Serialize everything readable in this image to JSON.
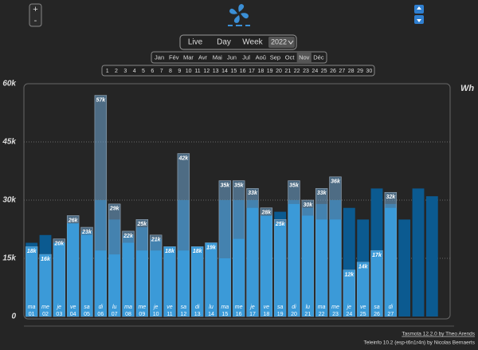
{
  "header": {
    "zoom_in": "+",
    "zoom_out": "-",
    "periods": [
      "Live",
      "Day",
      "Week"
    ],
    "year": "2022",
    "months": [
      "Jan",
      "Fév",
      "Mar",
      "Avr",
      "Mai",
      "Jun",
      "Jul",
      "Aoû",
      "Sep",
      "Oct",
      "Nov",
      "Déc"
    ],
    "selected_month": "Nov",
    "days": [
      "1",
      "2",
      "3",
      "4",
      "5",
      "6",
      "7",
      "8",
      "9",
      "10",
      "11",
      "12",
      "13",
      "14",
      "15",
      "16",
      "17",
      "18",
      "19",
      "20",
      "21",
      "22",
      "23",
      "24",
      "25",
      "26",
      "27",
      "28",
      "29",
      "30"
    ]
  },
  "chart_data": {
    "type": "bar",
    "unit": "Wh",
    "categories": [
      "01",
      "02",
      "03",
      "04",
      "05",
      "06",
      "07",
      "08",
      "09",
      "10",
      "11",
      "12",
      "13",
      "14",
      "15",
      "16",
      "17",
      "18",
      "19",
      "20",
      "21",
      "22",
      "23",
      "24",
      "25",
      "26",
      "27",
      null,
      null,
      null
    ],
    "weekdays": [
      "ma",
      "me",
      "je",
      "ve",
      "sa",
      "di",
      "lu",
      "ma",
      "me",
      "je",
      "ve",
      "sa",
      "di",
      "lu",
      "ma",
      "me",
      "je",
      "ve",
      "sa",
      "di",
      "lu",
      "ma",
      "me",
      "je",
      "ve",
      "sa",
      "di",
      null,
      null,
      null
    ],
    "ylim": [
      0,
      60000
    ],
    "yticks": [
      0,
      {
        "value": 15000,
        "label": "15k"
      },
      {
        "value": 30000,
        "label": "30k"
      },
      {
        "value": 45000,
        "label": "45k"
      },
      {
        "value": 60000,
        "label": "60k"
      }
    ],
    "grid": true,
    "series": [
      {
        "color": "#0b5a90",
        "values": [
          19000,
          21000,
          19000,
          24000,
          22000,
          30000,
          25000,
          21000,
          23000,
          20000,
          17000,
          30000,
          17000,
          18000,
          30000,
          30000,
          30000,
          26000,
          27000,
          30000,
          28000,
          29000,
          30000,
          28000,
          25000,
          33000,
          29000,
          25000,
          33000,
          31000
        ]
      },
      {
        "color": "#6b9cc4",
        "values": [
          18000,
          16000,
          20000,
          26000,
          23000,
          57000,
          29000,
          22000,
          25000,
          21000,
          18000,
          42000,
          18000,
          19000,
          35000,
          35000,
          33000,
          28000,
          25000,
          35000,
          30000,
          33000,
          36000,
          12000,
          14000,
          17000,
          32000,
          null,
          null,
          null
        ],
        "value_labels": [
          "18k",
          "16k",
          "20k",
          "26k",
          "23k",
          "57k",
          "29k",
          "22k",
          "25k",
          "21k",
          "18k",
          "42k",
          "18k",
          "19k",
          "35k",
          "35k",
          "33k",
          "28k",
          "25k",
          "35k",
          "30k",
          "33k",
          "36k",
          "12k",
          "14k",
          "17k",
          "32k",
          null,
          null,
          null
        ]
      },
      {
        "color": "#3b9ad8",
        "values": [
          18000,
          16000,
          19000,
          24000,
          21000,
          17000,
          16000,
          19000,
          17000,
          17000,
          18000,
          17000,
          18000,
          19000,
          15000,
          20000,
          28000,
          26000,
          24000,
          29000,
          26000,
          25000,
          25000,
          12000,
          14000,
          17000,
          28000,
          null,
          null,
          null
        ]
      }
    ]
  },
  "footer": {
    "tasmota": "Tasmota 12.2.0 by Theo Arends",
    "teleinfo": "Teleinfo 10.2 (esp-t6n1r4n) by Nicolas Bernaerts"
  }
}
